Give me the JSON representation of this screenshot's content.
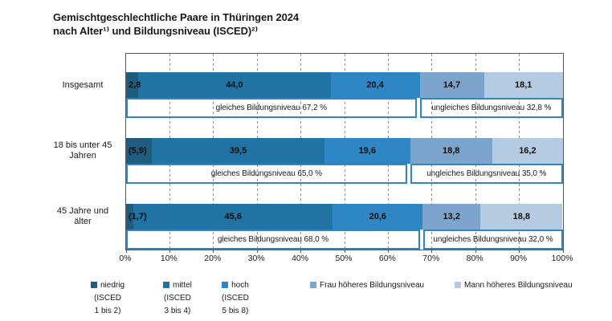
{
  "title": {
    "line1": "Gemischtgeschlechtliche Paare in Thüringen 2024",
    "line2": "nach Alter¹⁾ und Bildungsniveau (ISCED)²⁾"
  },
  "chart_data": {
    "type": "bar",
    "variant": "horizontal-stacked-percent",
    "xlim": [
      0,
      100
    ],
    "grid": "dashed vertical lines every 10%",
    "legend_position": "bottom",
    "x_ticks": [
      "0%",
      "10%",
      "20%",
      "30%",
      "40%",
      "50%",
      "60%",
      "70%",
      "80%",
      "90%",
      "100%"
    ],
    "series": [
      {
        "name": "niedrig (ISCED 1 bis 2)",
        "legend_lines": [
          "niedrig",
          "(ISCED",
          "1 bis 2)"
        ],
        "color": "#1f5c7d",
        "values": [
          2.8,
          5.9,
          1.7
        ]
      },
      {
        "name": "mittel (ISCED 3 bis 4)",
        "legend_lines": [
          "mittel",
          "(ISCED",
          "3 bis 4)"
        ],
        "color": "#2173a3",
        "values": [
          44.0,
          39.5,
          45.6
        ]
      },
      {
        "name": "hoch (ISCED 5 bis 8)",
        "legend_lines": [
          "hoch",
          "(ISCED",
          "5 bis 8)"
        ],
        "color": "#2e86c4",
        "values": [
          20.4,
          19.6,
          20.6
        ]
      },
      {
        "name": "Frau höheres Bildungsniveau",
        "legend_lines": [
          "Frau höheres Bildungsniveau"
        ],
        "color": "#7da4cc",
        "values": [
          14.7,
          18.8,
          13.2
        ]
      },
      {
        "name": "Mann höheres Bildungsniveau",
        "legend_lines": [
          "Mann höheres Bildungsniveau"
        ],
        "color": "#b5cbe2",
        "values": [
          18.1,
          16.2,
          18.8
        ]
      }
    ],
    "rows": [
      {
        "category_lines": [
          "Insgesamt"
        ],
        "values": [
          2.8,
          44.0,
          20.4,
          14.7,
          18.1
        ],
        "segment_labels": [
          "2,8",
          "44,0",
          "20,4",
          "14,7",
          "18,1"
        ],
        "gleich_pct": 67.2,
        "gleich_label": "gleiches Bildungsniveau 67,2 %",
        "ungleich_label": "ungleiches Bildungsniveau 32,8 %"
      },
      {
        "category_lines": [
          "18 bis unter 45",
          "Jahren"
        ],
        "values": [
          5.9,
          39.5,
          19.6,
          18.8,
          16.2
        ],
        "segment_labels": [
          "(5,9)",
          "39,5",
          "19,6",
          "18,8",
          "16,2"
        ],
        "gleich_pct": 65.0,
        "gleich_label": "gleiches Bildungsniveau 65,0 %",
        "ungleich_label": "ungleiches Bildungsniveau 35,0 %"
      },
      {
        "category_lines": [
          "45 Jahre und",
          "älter"
        ],
        "values": [
          1.7,
          45.6,
          20.6,
          13.2,
          18.8
        ],
        "segment_labels": [
          "(1,7)",
          "45,6",
          "20,6",
          "13,2",
          "18,8"
        ],
        "gleich_pct": 68.0,
        "gleich_label": "gleiches Bildungsniveau 68,0 %",
        "ungleich_label": "ungleiches Bildungsniveau 32,0 %"
      }
    ],
    "colors": {
      "box_border": "#2e86c4",
      "gridline": "#8c8c8c",
      "axis": "#595959",
      "text": "#1a1a1a"
    }
  }
}
